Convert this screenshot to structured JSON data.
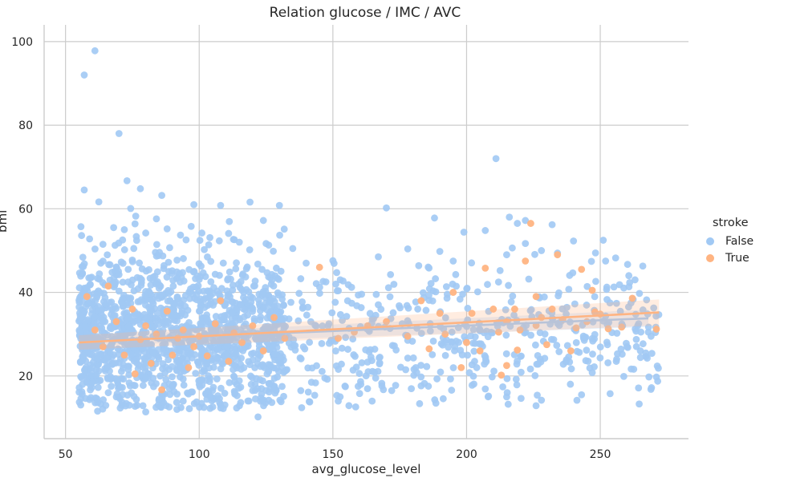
{
  "chart_data": {
    "type": "scatter",
    "title": "Relation glucose / IMC / AVC",
    "xlabel": "avg_glucose_level",
    "ylabel": "bmi",
    "xlim": [
      42,
      283
    ],
    "ylim": [
      5,
      104
    ],
    "x_ticks": [
      50,
      100,
      150,
      200,
      250
    ],
    "y_ticks": [
      20,
      40,
      60,
      80,
      100
    ],
    "x_tick_labels": [
      "50",
      "100",
      "150",
      "200",
      "250"
    ],
    "y_tick_labels": [
      "20",
      "40",
      "60",
      "80",
      "100"
    ],
    "grid": true,
    "legend_title": "stroke",
    "legend_placement": "right",
    "series": [
      {
        "name": "False",
        "color": "#a1c9f4",
        "regression": {
          "x": [
            55,
            268
          ],
          "y": [
            28.3,
            33.8
          ]
        },
        "points": [
          [
            57,
            92
          ],
          [
            61,
            97.8
          ],
          [
            70,
            78
          ],
          [
            57,
            64.5
          ],
          [
            73,
            66.7
          ],
          [
            78,
            64.8
          ],
          [
            86,
            63.2
          ],
          [
            98,
            61
          ],
          [
            108,
            60.8
          ],
          [
            119,
            61.6
          ],
          [
            130,
            60.8
          ],
          [
            170,
            60.2
          ],
          [
            124,
            57.2
          ],
          [
            188,
            57.8
          ],
          [
            211,
            72
          ],
          [
            216,
            58
          ],
          [
            219,
            56.5
          ],
          [
            232,
            56.2
          ],
          [
            222,
            57.2
          ],
          [
            56,
            53.6
          ],
          [
            59,
            52.8
          ],
          [
            64,
            51.5
          ],
          [
            68,
            55.5
          ],
          [
            72,
            55
          ],
          [
            76,
            56.4
          ],
          [
            80,
            54.2
          ],
          [
            84,
            57.6
          ],
          [
            88,
            55.2
          ],
          [
            93,
            53.7
          ],
          [
            97,
            55.8
          ],
          [
            101,
            54.2
          ],
          [
            104,
            53.1
          ],
          [
            111,
            54.1
          ],
          [
            115,
            52
          ],
          [
            126,
            51.3
          ],
          [
            135,
            50.5
          ],
          [
            140,
            47
          ],
          [
            150,
            47.6
          ],
          [
            167,
            48.5
          ],
          [
            178,
            50.4
          ],
          [
            190,
            49.8
          ],
          [
            195,
            47.5
          ],
          [
            199,
            54.4
          ],
          [
            207,
            54.8
          ],
          [
            215,
            49
          ],
          [
            222,
            51.7
          ],
          [
            228,
            50
          ],
          [
            234,
            49.4
          ],
          [
            240,
            52.3
          ],
          [
            252,
            47.5
          ],
          [
            263,
            43
          ],
          [
            58,
            18.5
          ],
          [
            60,
            22
          ],
          [
            62,
            11.6
          ],
          [
            66,
            16
          ],
          [
            69,
            15
          ],
          [
            71,
            13
          ],
          [
            76,
            17.7
          ],
          [
            80,
            11.4
          ],
          [
            85,
            14.5
          ],
          [
            90,
            17.5
          ],
          [
            94,
            14
          ],
          [
            99,
            13.8
          ],
          [
            105,
            16.5
          ],
          [
            109,
            12.2
          ],
          [
            114,
            18
          ],
          [
            120,
            16.5
          ],
          [
            122,
            10.2
          ],
          [
            126,
            14.2
          ],
          [
            131,
            17.5
          ],
          [
            138,
            16.5
          ],
          [
            142,
            18.5
          ],
          [
            147,
            19.5
          ],
          [
            152,
            14
          ],
          [
            156,
            12.9
          ],
          [
            160,
            15.8
          ],
          [
            166,
            19.5
          ],
          [
            172,
            16.5
          ],
          [
            181,
            22
          ],
          [
            194,
            19.3
          ],
          [
            203,
            23.5
          ],
          [
            207,
            16.9
          ],
          [
            215,
            15
          ],
          [
            228,
            14.2
          ],
          [
            243,
            15.5
          ],
          [
            247,
            20.8
          ],
          [
            256,
            23.5
          ],
          [
            260,
            27
          ],
          [
            265,
            26
          ],
          [
            267,
            25.5
          ],
          [
            268,
            30.5
          ],
          [
            269,
            29.5
          ],
          [
            264,
            32
          ]
        ],
        "cluster": {
          "x_min": 55,
          "x_max": 132,
          "y_center": 30,
          "y_spread": 9,
          "count": 1900
        }
      },
      {
        "name": "True",
        "color": "#ffb482",
        "regression": {
          "x": [
            55,
            272
          ],
          "y": [
            28.0,
            35.2
          ]
        },
        "points": [
          [
            58,
            39
          ],
          [
            61,
            31
          ],
          [
            64,
            27
          ],
          [
            66,
            41.5
          ],
          [
            69,
            33
          ],
          [
            72,
            25
          ],
          [
            75,
            36
          ],
          [
            76,
            20.5
          ],
          [
            78,
            28.7
          ],
          [
            80,
            32
          ],
          [
            82,
            23
          ],
          [
            84,
            30
          ],
          [
            86,
            16.7
          ],
          [
            88,
            35.5
          ],
          [
            90,
            25
          ],
          [
            92,
            29
          ],
          [
            94,
            31
          ],
          [
            96,
            22
          ],
          [
            98,
            27
          ],
          [
            100,
            29.5
          ],
          [
            103,
            24.8
          ],
          [
            106,
            32.5
          ],
          [
            108,
            38
          ],
          [
            111,
            23.5
          ],
          [
            113,
            30.3
          ],
          [
            116,
            28
          ],
          [
            120,
            32
          ],
          [
            124,
            26
          ],
          [
            128,
            34
          ],
          [
            132,
            29
          ],
          [
            145,
            46
          ],
          [
            152,
            29
          ],
          [
            158,
            30.5
          ],
          [
            163,
            32
          ],
          [
            170,
            33
          ],
          [
            178,
            29.5
          ],
          [
            183,
            38
          ],
          [
            186,
            26.5
          ],
          [
            190,
            35
          ],
          [
            192,
            30
          ],
          [
            195,
            40
          ],
          [
            198,
            22
          ],
          [
            200,
            28
          ],
          [
            202,
            35
          ],
          [
            205,
            26
          ],
          [
            207,
            45.8
          ],
          [
            210,
            36
          ],
          [
            212,
            30.5
          ],
          [
            215,
            33
          ],
          [
            218,
            36
          ],
          [
            220,
            31
          ],
          [
            222,
            47.5
          ],
          [
            224,
            56.5
          ],
          [
            226,
            39
          ],
          [
            228,
            34
          ],
          [
            230,
            27.5
          ],
          [
            232,
            36
          ],
          [
            234,
            49
          ],
          [
            236,
            33.5
          ],
          [
            239,
            26
          ],
          [
            241,
            31.5
          ],
          [
            243,
            45.5
          ],
          [
            245,
            33
          ],
          [
            247,
            40.5
          ],
          [
            248,
            35.3
          ],
          [
            250,
            34.8
          ],
          [
            253,
            31.3
          ],
          [
            258,
            31.7
          ],
          [
            262,
            38.6
          ],
          [
            271,
            31.2
          ],
          [
            215,
            22.5
          ],
          [
            213,
            20.2
          ],
          [
            219,
            26.2
          ],
          [
            226,
            32.1
          ]
        ]
      }
    ]
  }
}
